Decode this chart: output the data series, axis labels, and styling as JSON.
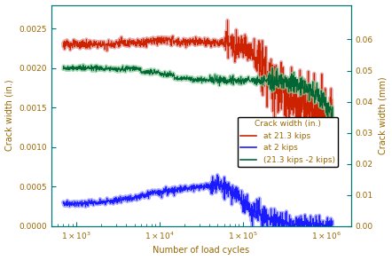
{
  "xlabel": "Number of load cycles",
  "ylabel_left": "Crack width (in.)",
  "ylabel_right": "Crack width (mm)",
  "xlim": [
    500,
    2000000
  ],
  "ylim_left": [
    0,
    0.0028
  ],
  "ylim_right": [
    0,
    0.07
  ],
  "yticks_left": [
    0,
    0.0005,
    0.001,
    0.0015,
    0.002,
    0.0025
  ],
  "yticks_right": [
    0,
    0.01,
    0.02,
    0.03,
    0.04,
    0.05,
    0.06
  ],
  "legend_title": "Crack width (in.)",
  "legend_entries": [
    "at 21.3 kips",
    "at 2 kips",
    "(21.3 kips -2 kips)"
  ],
  "line_colors": [
    "#cc2200",
    "#1a1aff",
    "#006633"
  ],
  "band_colors": [
    "#dd8888",
    "#8888ff",
    "#88cc99"
  ],
  "axis_color": "#007777",
  "label_color": "#996600",
  "tick_color": "#007777",
  "background_color": "#ffffff",
  "conversion_factor": 25.4,
  "n_points": 1200
}
